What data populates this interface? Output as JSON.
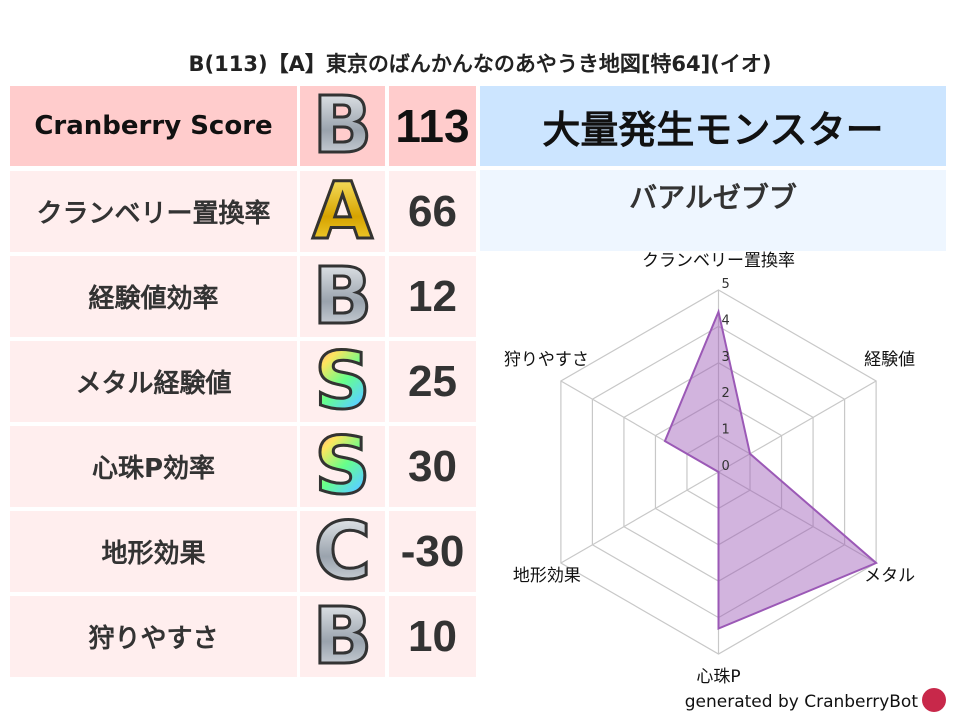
{
  "title": "B(113)【A】東京のばんかんなのあやうき地図[特64](イオ)",
  "rows": [
    {
      "label": "Cranberry Score",
      "grade": "B",
      "value": "113"
    },
    {
      "label": "クランベリー置換率",
      "grade": "A",
      "value": "66"
    },
    {
      "label": "経験値効率",
      "grade": "B",
      "value": "12"
    },
    {
      "label": "メタル経験値",
      "grade": "S",
      "value": "25"
    },
    {
      "label": "心珠P効率",
      "grade": "S",
      "value": "30"
    },
    {
      "label": "地形効果",
      "grade": "C",
      "value": "-30"
    },
    {
      "label": "狩りやすさ",
      "grade": "B",
      "value": "10"
    }
  ],
  "monster": {
    "header": "大量発生モンスター",
    "name": "バアルゼブブ"
  },
  "chart_data": {
    "type": "radar",
    "axes": [
      "クランベリー置換率",
      "経験値",
      "メタル",
      "心珠P",
      "地形効果",
      "狩りやすさ"
    ],
    "values": [
      4.4,
      1.0,
      5.0,
      4.3,
      0,
      1.7
    ],
    "range": [
      0,
      5
    ],
    "ticks": [
      "0",
      "1",
      "2",
      "3",
      "4",
      "5"
    ],
    "color": "#9b59b6"
  },
  "footer": "generated by CranberryBot",
  "colors": {
    "header_row": "#ffcccc",
    "row": "#ffeeee",
    "monster_header": "#cce5ff",
    "monster_name": "#eef6ff"
  }
}
